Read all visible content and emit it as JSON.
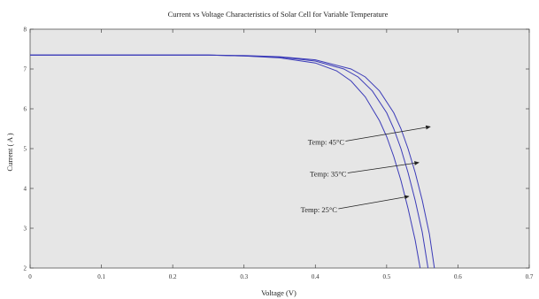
{
  "chart_data": {
    "type": "line",
    "title": "Current vs Voltage Characteristics of Solar Cell for Variable Temperature",
    "xlabel": "Voltage (V)",
    "ylabel": "Current ( A )",
    "xlim": [
      0,
      0.7
    ],
    "ylim": [
      2,
      8
    ],
    "xticks": [
      "0",
      "0.1",
      "0.2",
      "0.3",
      "0.4",
      "0.5",
      "0.6",
      "0.7"
    ],
    "yticks": [
      "2",
      "3",
      "4",
      "5",
      "6",
      "7",
      "8"
    ],
    "grid": false,
    "series": [
      {
        "name": "Temp: 25°C",
        "x": [
          0,
          0.1,
          0.2,
          0.25,
          0.3,
          0.35,
          0.4,
          0.43,
          0.45,
          0.47,
          0.49,
          0.5,
          0.51,
          0.52,
          0.53,
          0.54,
          0.547
        ],
        "y": [
          7.35,
          7.35,
          7.35,
          7.35,
          7.33,
          7.28,
          7.15,
          6.95,
          6.7,
          6.3,
          5.7,
          5.3,
          4.8,
          4.2,
          3.5,
          2.7,
          2.0
        ]
      },
      {
        "name": "Temp: 35°C",
        "x": [
          0,
          0.1,
          0.2,
          0.25,
          0.3,
          0.35,
          0.4,
          0.44,
          0.46,
          0.48,
          0.5,
          0.51,
          0.52,
          0.53,
          0.54,
          0.55,
          0.558
        ],
        "y": [
          7.35,
          7.35,
          7.35,
          7.35,
          7.33,
          7.3,
          7.2,
          7.0,
          6.8,
          6.45,
          5.9,
          5.5,
          5.0,
          4.4,
          3.7,
          2.9,
          2.0
        ]
      },
      {
        "name": "Temp: 45°C",
        "x": [
          0,
          0.1,
          0.2,
          0.25,
          0.3,
          0.35,
          0.4,
          0.45,
          0.47,
          0.49,
          0.51,
          0.52,
          0.53,
          0.54,
          0.55,
          0.56,
          0.567
        ],
        "y": [
          7.35,
          7.35,
          7.35,
          7.35,
          7.34,
          7.31,
          7.23,
          7.0,
          6.8,
          6.45,
          5.9,
          5.5,
          5.0,
          4.4,
          3.7,
          2.85,
          2.0
        ]
      }
    ],
    "annotations": [
      {
        "text": "Temp: 25°C",
        "label_at": [
          0.405,
          3.4
        ],
        "arrow_to": [
          0.531,
          3.8
        ]
      },
      {
        "text": "Temp: 35°C",
        "label_at": [
          0.418,
          4.3
        ],
        "arrow_to": [
          0.545,
          4.65
        ]
      },
      {
        "text": "Temp: 45°C",
        "label_at": [
          0.415,
          5.1
        ],
        "arrow_to": [
          0.561,
          5.55
        ]
      }
    ],
    "line_color": "#3b3bb8"
  }
}
